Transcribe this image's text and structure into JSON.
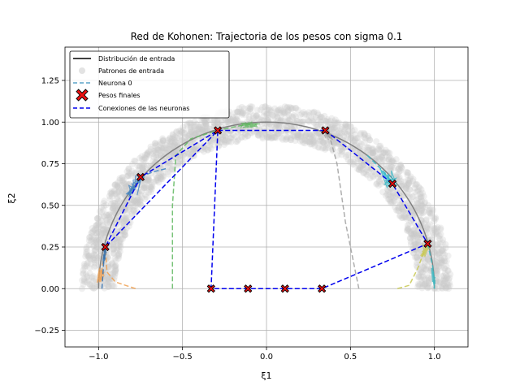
{
  "chart_data": {
    "type": "scatter",
    "title": "Red de Kohonen: Trajectoria de los pesos con sigma 0.1",
    "xlabel": "ξ1",
    "ylabel": "ξ2",
    "xlim": [
      -1.2,
      1.2
    ],
    "ylim": [
      -0.35,
      1.45
    ],
    "xticks": [
      -1.0,
      -0.5,
      0.0,
      0.5,
      1.0
    ],
    "xtick_labels": [
      "−1.0",
      "−0.5",
      "0.0",
      "0.5",
      "1.0"
    ],
    "yticks": [
      -0.25,
      0.0,
      0.25,
      0.5,
      0.75,
      1.0,
      1.25
    ],
    "ytick_labels": [
      "−0.25",
      "0.00",
      "0.25",
      "0.50",
      "0.75",
      "1.00",
      "1.25"
    ],
    "grid": true,
    "legend_position": "top-left",
    "legend": [
      {
        "label": "Distribución de entrada",
        "style": "line",
        "color": "#000000"
      },
      {
        "label": "Patrones de entrada",
        "style": "dot",
        "color": "#c8c8c8"
      },
      {
        "label": "Neurona 0",
        "style": "dashed",
        "color": "#5aa3c9"
      },
      {
        "label": "Pesos finales",
        "style": "x-marker",
        "color": "#ee1111"
      },
      {
        "label": "Conexiones de las neuronas",
        "style": "dashed",
        "color": "#0000ee"
      }
    ],
    "input_distribution": {
      "shape": "semicircle",
      "radius": 1.0,
      "band_inner": 0.9,
      "band_outer": 1.1,
      "color": "#808080"
    },
    "final_weights": [
      {
        "x": 0.35,
        "y": 0.95
      },
      {
        "x": 0.75,
        "y": 0.63
      },
      {
        "x": 0.96,
        "y": 0.27
      },
      {
        "x": 0.33,
        "y": 0.0
      },
      {
        "x": 0.11,
        "y": 0.0
      },
      {
        "x": -0.11,
        "y": 0.0
      },
      {
        "x": -0.33,
        "y": 0.0
      },
      {
        "x": -0.29,
        "y": 0.95
      },
      {
        "x": -0.75,
        "y": 0.67
      },
      {
        "x": -0.96,
        "y": 0.25
      }
    ],
    "connection_order": [
      0,
      1,
      2,
      3,
      4,
      5,
      6,
      7,
      8,
      9,
      7,
      0
    ],
    "trajectories": [
      {
        "color": "#a0a0a0",
        "points": [
          [
            0.55,
            0.0
          ],
          [
            0.47,
            0.4
          ],
          [
            0.42,
            0.75
          ],
          [
            0.38,
            0.9
          ],
          [
            0.35,
            0.95
          ]
        ],
        "jitter": 0.02
      },
      {
        "color": "#30b8c8",
        "points": [
          [
            0.6,
            0.8
          ],
          [
            0.65,
            0.75
          ],
          [
            0.7,
            0.7
          ],
          [
            0.75,
            0.63
          ]
        ],
        "jitter": 0.03
      },
      {
        "color": "#c8c850",
        "points": [
          [
            0.78,
            0.0
          ],
          [
            0.85,
            0.02
          ],
          [
            0.9,
            0.12
          ],
          [
            0.93,
            0.2
          ],
          [
            0.96,
            0.27
          ]
        ],
        "jitter": 0.02
      },
      {
        "color": "#40b8c0",
        "points": [
          [
            0.96,
            0.27
          ],
          [
            0.99,
            0.13
          ],
          [
            1.0,
            0.0
          ]
        ],
        "jitter": 0.01
      },
      {
        "color": "#60b860",
        "points": [
          [
            -0.56,
            0.0
          ],
          [
            -0.56,
            0.5
          ],
          [
            -0.54,
            0.8
          ],
          [
            -0.45,
            0.9
          ],
          [
            -0.29,
            0.95
          ],
          [
            -0.15,
            0.98
          ],
          [
            -0.05,
            0.99
          ]
        ],
        "jitter": 0.02
      },
      {
        "color": "#3a80c0",
        "points": [
          [
            -0.6,
            0.72
          ],
          [
            -0.68,
            0.7
          ],
          [
            -0.75,
            0.67
          ],
          [
            -0.82,
            0.55
          ]
        ],
        "jitter": 0.03
      },
      {
        "color": "#f0a050",
        "points": [
          [
            -0.78,
            0.0
          ],
          [
            -0.9,
            0.04
          ],
          [
            -0.95,
            0.1
          ],
          [
            -0.96,
            0.25
          ],
          [
            -0.98,
            0.12
          ],
          [
            -0.99,
            0.05
          ]
        ],
        "jitter": 0.02
      },
      {
        "color": "#3070b0",
        "points": [
          [
            -0.98,
            0.0
          ],
          [
            -0.97,
            0.15
          ],
          [
            -0.96,
            0.25
          ]
        ],
        "jitter": 0.01
      }
    ]
  }
}
